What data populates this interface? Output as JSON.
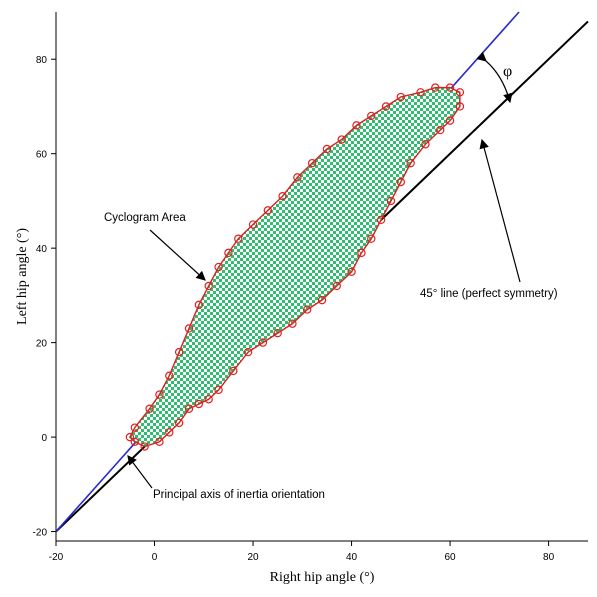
{
  "chart_data": {
    "type": "scatter",
    "title": "",
    "xlabel": "Right hip angle (°)",
    "ylabel": "Left hip angle (°)",
    "xlim": [
      -20,
      88
    ],
    "ylim": [
      -22,
      90
    ],
    "x_ticks": [
      -20,
      0,
      20,
      40,
      60,
      80
    ],
    "y_ticks": [
      -20,
      0,
      20,
      40,
      60,
      80
    ],
    "x_tick_labels": [
      "-20",
      "0",
      "20",
      "40",
      "60",
      "80"
    ],
    "y_tick_labels": [
      "-20",
      "0",
      "20",
      "40",
      "60",
      "80"
    ],
    "grid": false,
    "colors": {
      "fill": "#2ebd6e",
      "loop": "#e02020",
      "principal_axis": "#2a2ad0",
      "symmetry_line": "#000000"
    },
    "cyclogram_points": [
      [
        -4,
        2
      ],
      [
        -1,
        6
      ],
      [
        1,
        9
      ],
      [
        3,
        13
      ],
      [
        5,
        18
      ],
      [
        7,
        23
      ],
      [
        9,
        28
      ],
      [
        11,
        32
      ],
      [
        13,
        36
      ],
      [
        15,
        39
      ],
      [
        17,
        42
      ],
      [
        20,
        45
      ],
      [
        23,
        48
      ],
      [
        26,
        51
      ],
      [
        29,
        55
      ],
      [
        32,
        58
      ],
      [
        35,
        61
      ],
      [
        38,
        63
      ],
      [
        41,
        66
      ],
      [
        44,
        68
      ],
      [
        47,
        70
      ],
      [
        50,
        72
      ],
      [
        54,
        73
      ],
      [
        57,
        74
      ],
      [
        60,
        74
      ],
      [
        62,
        73
      ],
      [
        62,
        70
      ],
      [
        60,
        67
      ],
      [
        58,
        65
      ],
      [
        55,
        62
      ],
      [
        52,
        58
      ],
      [
        50,
        54
      ],
      [
        48,
        50
      ],
      [
        46,
        46
      ],
      [
        44,
        42
      ],
      [
        42,
        39
      ],
      [
        40,
        35
      ],
      [
        37,
        32
      ],
      [
        34,
        29
      ],
      [
        31,
        27
      ],
      [
        28,
        24
      ],
      [
        25,
        22
      ],
      [
        22,
        20
      ],
      [
        19,
        18
      ],
      [
        16,
        14
      ],
      [
        13,
        10
      ],
      [
        11,
        8
      ],
      [
        9,
        7
      ],
      [
        7,
        6
      ],
      [
        5,
        3
      ],
      [
        3,
        1
      ],
      [
        1,
        -1
      ],
      [
        -2,
        -2
      ],
      [
        -4,
        -1
      ],
      [
        -5,
        0
      ]
    ],
    "principal_axis": {
      "from": [
        -20,
        -20
      ],
      "to": [
        74,
        90
      ]
    },
    "symmetry_line": {
      "from": [
        -20,
        -20
      ],
      "to": [
        88,
        88
      ]
    },
    "annotations": {
      "cyclogram_area": "Cyclogram Area",
      "symmetry_line": "45° line (perfect symmetry)",
      "principal_axis": "Principal axis of inertia orientation",
      "angle_symbol": "φ"
    }
  }
}
